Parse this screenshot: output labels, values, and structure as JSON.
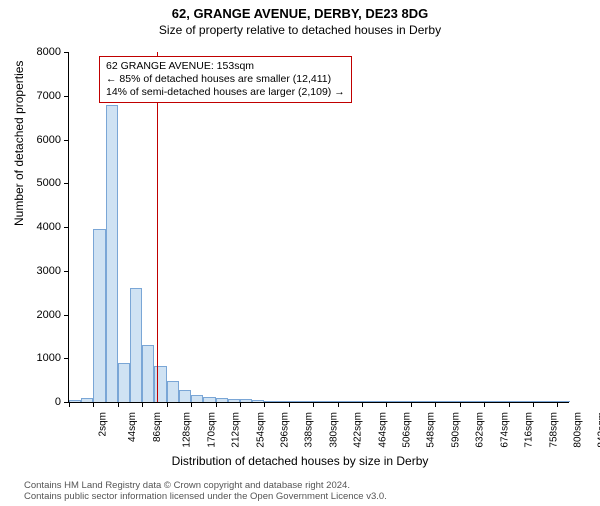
{
  "title": "62, GRANGE AVENUE, DERBY, DE23 8DG",
  "subtitle": "Size of property relative to detached houses in Derby",
  "chart": {
    "type": "histogram",
    "ylabel": "Number of detached properties",
    "xlabel": "Distribution of detached houses by size in Derby",
    "ylim": [
      0,
      8000
    ],
    "ytick_step": 1000,
    "xlim": [
      2,
      862
    ],
    "xtick_start": 2,
    "xtick_step": 42,
    "xtick_suffix": "sqm",
    "bin_width": 21,
    "values": [
      50,
      100,
      3950,
      6800,
      900,
      2600,
      1300,
      820,
      480,
      280,
      160,
      120,
      100,
      70,
      60,
      40,
      30,
      20,
      10,
      10,
      10,
      5,
      5,
      5,
      5,
      5,
      5,
      5,
      5,
      5,
      5,
      5,
      5,
      5,
      5,
      5,
      5,
      5,
      5,
      5,
      5
    ],
    "bar_fill": "#cfe2f3",
    "bar_stroke": "#7aa6d6",
    "background_color": "#ffffff",
    "reference_line": {
      "value": 153,
      "color": "#c00000",
      "width": 1
    },
    "annotation": {
      "lines": [
        "62 GRANGE AVENUE: 153sqm",
        "← 85% of detached houses are smaller (12,411)",
        "14% of semi-detached houses are larger (2,109) →"
      ],
      "border_color": "#c00000",
      "background": "#ffffff",
      "fontsize": 10.5
    }
  },
  "attribution": "Contains HM Land Registry data © Crown copyright and database right 2024.\nContains public sector information licensed under the Open Government Licence v3.0."
}
